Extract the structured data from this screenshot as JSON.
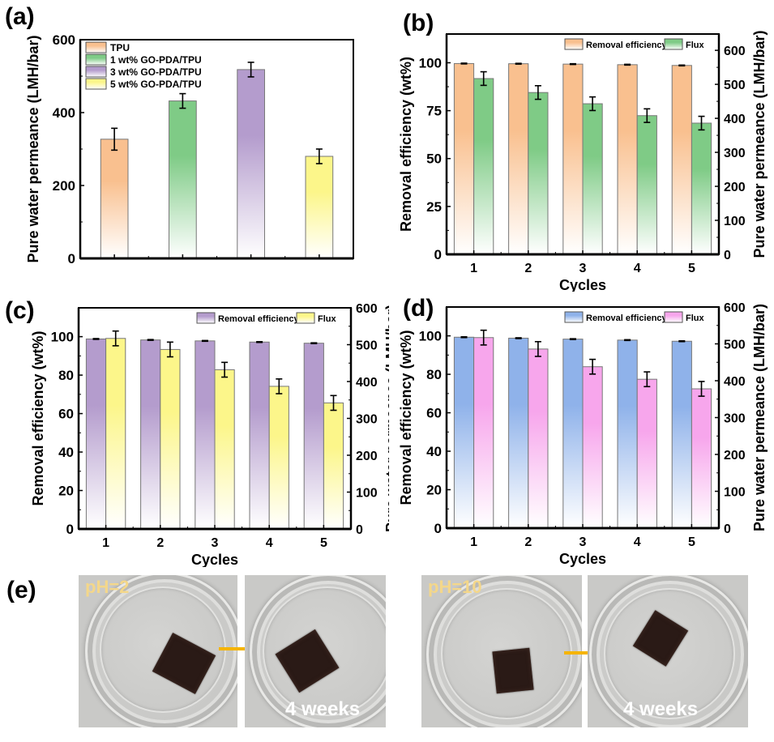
{
  "figure": {
    "panel_labels": [
      "(a)",
      "(b)",
      "(c)",
      "(d)",
      "(e)"
    ],
    "photos": {
      "items": [
        {
          "overlay_label": "pH=2",
          "caption": ""
        },
        {
          "overlay_label": "",
          "caption": "4 weeks"
        },
        {
          "overlay_label": "pH=10",
          "caption": ""
        },
        {
          "overlay_label": "",
          "caption": "4 weeks"
        }
      ],
      "arrow_color": "#f5b400",
      "label_color": "#f4d78a"
    }
  },
  "chart_data": [
    {
      "id": "a",
      "type": "bar",
      "title": "",
      "xlabel": "",
      "ylabel": "Pure water permeance (LMH/bar)",
      "ylim": [
        0,
        600
      ],
      "yticks": [
        0,
        200,
        400,
        600
      ],
      "grid": false,
      "legend_position": "top-left",
      "categories": [
        "TPU",
        "1 wt% GO-PDA/TPU",
        "3 wt% GO-PDA/TPU",
        "5 wt% GO-PDA/TPU"
      ],
      "series": [
        {
          "name": "TPU",
          "values": [
            327
          ],
          "errors": [
            30
          ],
          "color": "#f9c08f"
        },
        {
          "name": "1 wt% GO-PDA/TPU",
          "values": [
            432
          ],
          "errors": [
            20
          ],
          "color": "#7fcb86"
        },
        {
          "name": "3 wt% GO-PDA/TPU",
          "values": [
            518
          ],
          "errors": [
            20
          ],
          "color": "#b49ccd"
        },
        {
          "name": "5 wt% GO-PDA/TPU",
          "values": [
            280
          ],
          "errors": [
            20
          ],
          "color": "#fcf68a"
        }
      ]
    },
    {
      "id": "b",
      "type": "bar",
      "title": "",
      "xlabel": "Cycles",
      "ylabel": "Removal efficiency (wt%)",
      "ylabel_right": "Pure water permeance (LMH/bar)",
      "categories": [
        "1",
        "2",
        "3",
        "4",
        "5"
      ],
      "ylim": [
        0,
        115
      ],
      "yticks": [
        0,
        25,
        50,
        75,
        100
      ],
      "ylim_right": [
        0,
        648
      ],
      "yticks_right": [
        0,
        100,
        200,
        300,
        400,
        500,
        600
      ],
      "grid": false,
      "legend_position": "top-right",
      "series": [
        {
          "name": "Removal efficiency",
          "axis": "left",
          "values": [
            99.6,
            99.5,
            99.3,
            99.0,
            98.6
          ],
          "errors": [
            0.2,
            0.2,
            0.2,
            0.2,
            0.2
          ],
          "color": "#f9c08f"
        },
        {
          "name": "Flux",
          "axis": "right",
          "values": [
            517,
            476,
            443,
            408,
            386
          ],
          "errors": [
            20,
            20,
            20,
            20,
            20
          ],
          "color": "#7fcb86"
        }
      ]
    },
    {
      "id": "c",
      "type": "bar",
      "title": "",
      "xlabel": "Cycles",
      "ylabel": "Removal efficiency (wt%)",
      "ylabel_right": "Pure water permeance (LMH/bar)",
      "categories": [
        "1",
        "2",
        "3",
        "4",
        "5"
      ],
      "ylim": [
        0,
        115
      ],
      "yticks": [
        0,
        20,
        40,
        60,
        80,
        100
      ],
      "ylim_right": [
        0,
        600
      ],
      "yticks_right": [
        0,
        100,
        200,
        300,
        400,
        500,
        600
      ],
      "grid": false,
      "legend_position": "top-right",
      "series": [
        {
          "name": "Removal efficiency",
          "axis": "left",
          "values": [
            98.8,
            98.3,
            97.8,
            97.2,
            96.6
          ],
          "errors": [
            0.2,
            0.2,
            0.2,
            0.2,
            0.2
          ],
          "color": "#b49ccd"
        },
        {
          "name": "Flux",
          "axis": "right",
          "values": [
            517,
            487,
            432,
            387,
            342
          ],
          "errors": [
            20,
            20,
            20,
            20,
            20
          ],
          "color": "#fcf68a"
        }
      ]
    },
    {
      "id": "d",
      "type": "bar",
      "title": "",
      "xlabel": "Cycles",
      "ylabel": "Removal efficiency (wt%)",
      "ylabel_right": "Pure water permeance (LMH/bar)",
      "categories": [
        "1",
        "2",
        "3",
        "4",
        "5"
      ],
      "ylim": [
        0,
        115
      ],
      "yticks": [
        0,
        20,
        40,
        60,
        80,
        100
      ],
      "ylim_right": [
        0,
        600
      ],
      "yticks_right": [
        0,
        100,
        200,
        300,
        400,
        500,
        600
      ],
      "grid": false,
      "legend_position": "top-right",
      "series": [
        {
          "name": "Removal efficiency",
          "axis": "left",
          "values": [
            99.3,
            98.8,
            98.3,
            97.8,
            97.2
          ],
          "errors": [
            0.2,
            0.2,
            0.2,
            0.2,
            0.2
          ],
          "color": "#8fb2ea"
        },
        {
          "name": "Flux",
          "axis": "right",
          "values": [
            517,
            486,
            438,
            404,
            378
          ],
          "errors": [
            20,
            20,
            20,
            20,
            20
          ],
          "color": "#f7a6ec"
        }
      ]
    }
  ]
}
